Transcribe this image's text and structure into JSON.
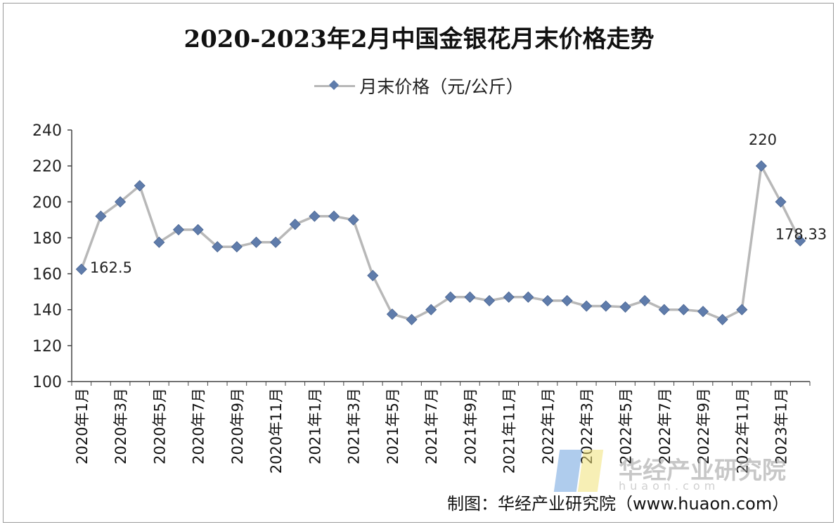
{
  "title": "2020-2023年2月中国金银花月末价格走势",
  "legend": {
    "label": "月末价格（元/公斤）"
  },
  "source": "制图：华经产业研究院（www.huaon.com）",
  "watermark": {
    "text": "华经产业研究院",
    "sub": "huaon.com"
  },
  "colors": {
    "line": "#b8b8b8",
    "marker": "#5f7cab",
    "axis": "#444444"
  },
  "chart_data": {
    "type": "line",
    "x": [
      "2020年1月",
      "2020年2月",
      "2020年3月",
      "2020年4月",
      "2020年5月",
      "2020年6月",
      "2020年7月",
      "2020年8月",
      "2020年9月",
      "2020年10月",
      "2020年11月",
      "2020年12月",
      "2021年1月",
      "2021年2月",
      "2021年3月",
      "2021年4月",
      "2021年5月",
      "2021年6月",
      "2021年7月",
      "2021年8月",
      "2021年9月",
      "2021年10月",
      "2021年11月",
      "2021年12月",
      "2022年1月",
      "2022年2月",
      "2022年3月",
      "2022年4月",
      "2022年5月",
      "2022年6月",
      "2022年7月",
      "2022年8月",
      "2022年9月",
      "2022年10月",
      "2022年11月",
      "2022年12月",
      "2023年1月",
      "2023年2月"
    ],
    "series": [
      {
        "name": "月末价格（元/公斤）",
        "values": [
          162.5,
          192,
          200,
          209,
          177.5,
          184.5,
          184.5,
          175,
          175,
          177.5,
          177.5,
          187.5,
          192,
          192,
          190,
          159,
          137.5,
          134.5,
          140,
          147,
          147,
          145,
          147,
          147,
          145,
          145,
          142,
          142,
          141.5,
          145,
          140,
          140,
          139,
          134.5,
          140,
          220,
          200,
          178.33
        ]
      }
    ],
    "tick_labels": [
      "2020年1月",
      "2020年3月",
      "2020年5月",
      "2020年7月",
      "2020年9月",
      "2020年11月",
      "2021年1月",
      "2021年3月",
      "2021年5月",
      "2021年7月",
      "2021年9月",
      "2021年11月",
      "2022年1月",
      "2022年3月",
      "2022年5月",
      "2022年7月",
      "2022年9月",
      "2022年11月",
      "2023年1月"
    ],
    "y_ticks": [
      "100",
      "120",
      "140",
      "160",
      "180",
      "200",
      "220",
      "240"
    ],
    "data_labels": [
      {
        "index": 0,
        "text": "162.5"
      },
      {
        "index": 35,
        "text": "220"
      },
      {
        "index": 37,
        "text": "178.33"
      }
    ],
    "ylim": [
      100,
      240
    ],
    "grid": false,
    "legend_position": "top-center"
  }
}
